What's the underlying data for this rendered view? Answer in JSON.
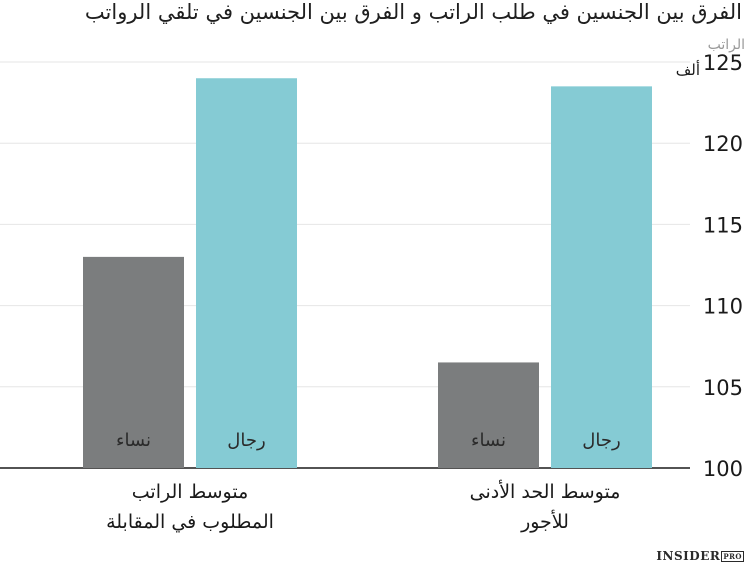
{
  "chart_data": {
    "type": "bar",
    "title": "الفرق بين الجنسين في طلب الراتب و الفرق بين الجنسين في تلقي الرواتب",
    "ylabel": "الراتب",
    "yunit": "ألف",
    "ylim": [
      100,
      125
    ],
    "yticks": [
      100,
      105,
      110,
      115,
      120,
      125
    ],
    "grid": true,
    "groups": [
      {
        "label_lines": [
          "متوسط الراتب",
          "المطلوب في المقابلة"
        ],
        "bars": [
          {
            "label": "نساء",
            "value": 113,
            "color": "#7b7d7e"
          },
          {
            "label": "رجال",
            "value": 124,
            "color": "#85cbd4"
          }
        ]
      },
      {
        "label_lines": [
          "متوسط الحد الأدنى",
          "للأجور"
        ],
        "bars": [
          {
            "label": "نساء",
            "value": 106.5,
            "color": "#7b7d7e"
          },
          {
            "label": "رجال",
            "value": 123.5,
            "color": "#85cbd4"
          }
        ]
      }
    ]
  },
  "watermark": {
    "brand": "INSIDER",
    "suffix": "PRO"
  }
}
